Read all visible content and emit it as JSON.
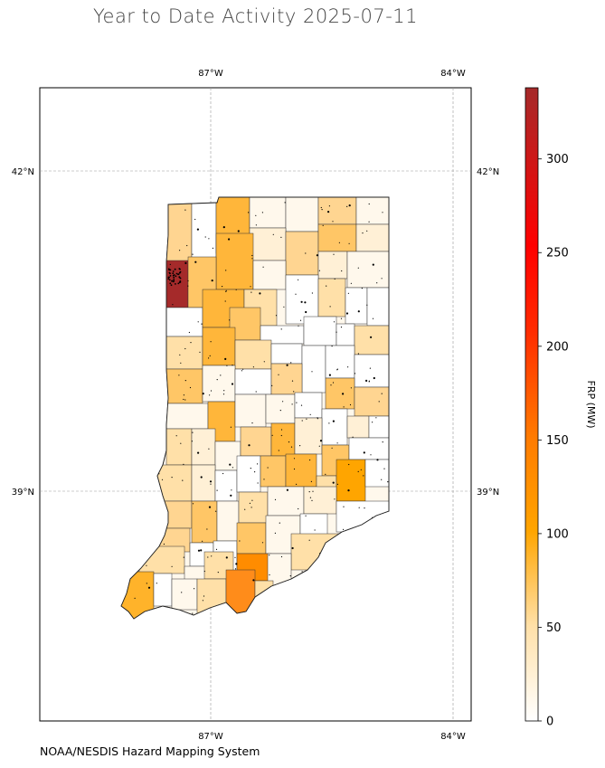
{
  "title": "Year to Date Activity 2025-07-11",
  "credit": "NOAA/NESDIS Hazard Mapping System",
  "map": {
    "lon_labels": [
      "87°W",
      "84°W"
    ],
    "lat_labels": [
      "42°N",
      "39°N"
    ]
  },
  "colorbar": {
    "label": "FRP (MW)",
    "ticks": [
      "0",
      "50",
      "100",
      "150",
      "200",
      "250",
      "300"
    ],
    "tick_values": [
      0,
      50,
      100,
      150,
      200,
      250,
      300
    ],
    "max": 338,
    "colors": [
      "#ffffff",
      "#ffe0a8",
      "#ffa500",
      "#ff4500",
      "#ff0000",
      "#a52a2a"
    ]
  }
}
